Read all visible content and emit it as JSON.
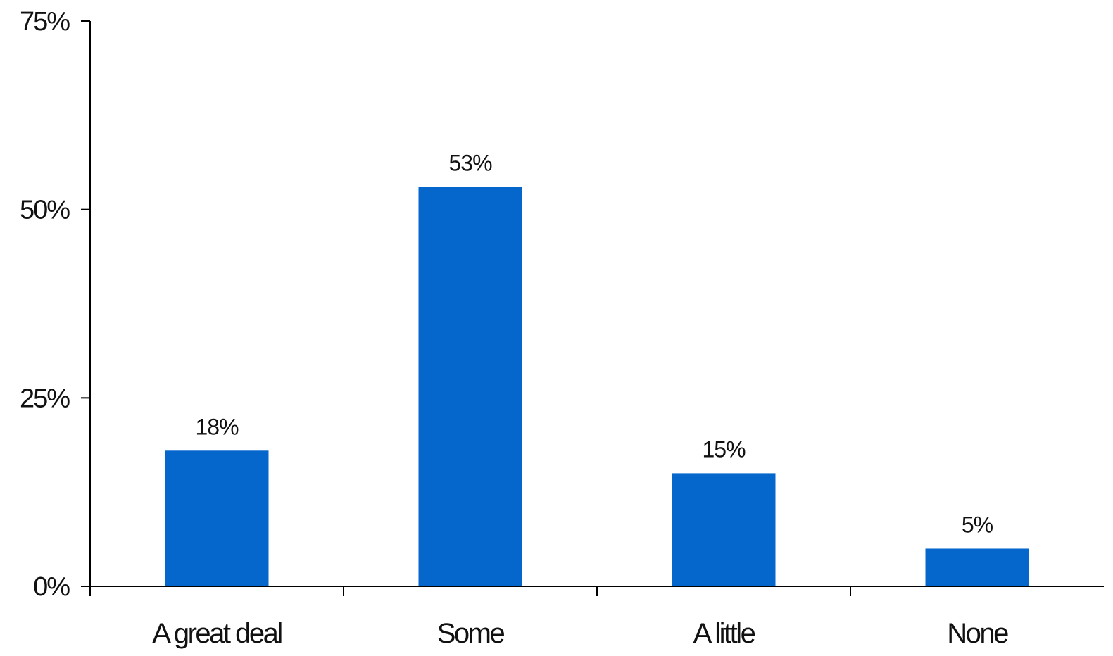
{
  "chart_data": {
    "type": "bar",
    "categories": [
      "A great deal",
      "Some",
      "A little",
      "None"
    ],
    "values": [
      18,
      53,
      15,
      5
    ],
    "data_labels": [
      "18%",
      "53%",
      "15%",
      "5%"
    ],
    "title": "",
    "xlabel": "",
    "ylabel": "",
    "ylim": [
      0,
      75
    ],
    "yticks": [
      0,
      25,
      50,
      75
    ],
    "ytick_labels": [
      "0%",
      "25%",
      "50%",
      "75%"
    ],
    "grid": false,
    "legend": "none",
    "bar_color": "#0566CC",
    "axis_color": "#000000"
  }
}
